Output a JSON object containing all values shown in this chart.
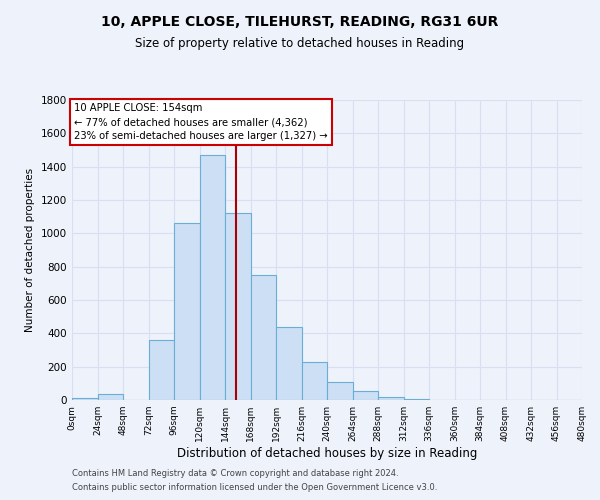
{
  "title1": "10, APPLE CLOSE, TILEHURST, READING, RG31 6UR",
  "title2": "Size of property relative to detached houses in Reading",
  "xlabel": "Distribution of detached houses by size in Reading",
  "ylabel": "Number of detached properties",
  "bar_color": "#ccdff5",
  "bar_edge_color": "#6aaed6",
  "bin_edges": [
    0,
    24,
    48,
    72,
    96,
    120,
    144,
    168,
    192,
    216,
    240,
    264,
    288,
    312,
    336,
    360,
    384,
    408,
    432,
    456,
    480
  ],
  "bar_heights": [
    15,
    35,
    0,
    360,
    1060,
    1470,
    1120,
    750,
    440,
    230,
    110,
    55,
    20,
    5,
    0,
    0,
    0,
    0,
    0,
    0
  ],
  "property_size": 154,
  "vline_color": "#aa0000",
  "annotation_line1": "10 APPLE CLOSE: 154sqm",
  "annotation_line2": "← 77% of detached houses are smaller (4,362)",
  "annotation_line3": "23% of semi-detached houses are larger (1,327) →",
  "annotation_box_color": "#ffffff",
  "annotation_box_edge": "#cc0000",
  "ylim": [
    0,
    1800
  ],
  "yticks": [
    0,
    200,
    400,
    600,
    800,
    1000,
    1200,
    1400,
    1600,
    1800
  ],
  "xtick_labels": [
    "0sqm",
    "24sqm",
    "48sqm",
    "72sqm",
    "96sqm",
    "120sqm",
    "144sqm",
    "168sqm",
    "192sqm",
    "216sqm",
    "240sqm",
    "264sqm",
    "288sqm",
    "312sqm",
    "336sqm",
    "360sqm",
    "384sqm",
    "408sqm",
    "432sqm",
    "456sqm",
    "480sqm"
  ],
  "footnote1": "Contains HM Land Registry data © Crown copyright and database right 2024.",
  "footnote2": "Contains public sector information licensed under the Open Government Licence v3.0.",
  "background_color": "#eef2fb",
  "grid_color": "#d8dff0",
  "plot_bg_color": "#eef2fb"
}
